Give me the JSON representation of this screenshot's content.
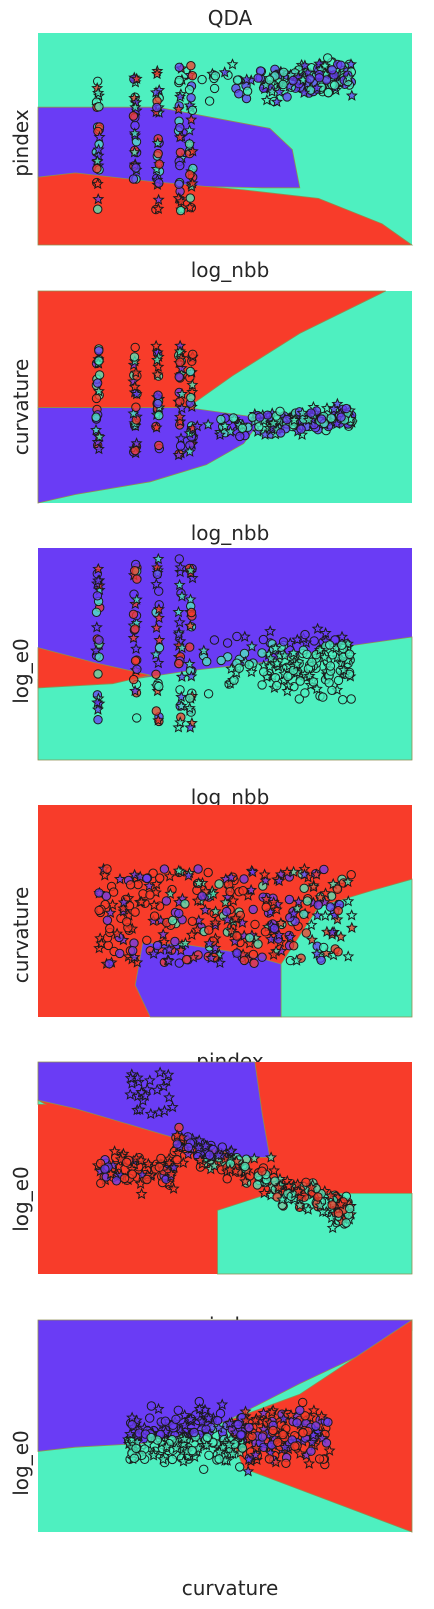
{
  "figure": {
    "title": "QDA"
  },
  "colors": {
    "class_a": "#4ef0c0",
    "class_b": "#6a3cf5",
    "class_c": "#f83c2a",
    "boundary": "#8f8f50",
    "marker_edge": "#1a1a1a"
  },
  "chart_data": [
    {
      "type": "scatter",
      "title": "QDA",
      "xlabel": "log_nbb",
      "ylabel": "pindex",
      "grid": false,
      "ticks": false
    },
    {
      "type": "scatter",
      "title": "",
      "xlabel": "log_nbb",
      "ylabel": "curvature",
      "grid": false,
      "ticks": false
    },
    {
      "type": "scatter",
      "title": "",
      "xlabel": "log_nbb",
      "ylabel": "log_e0",
      "grid": false,
      "ticks": false
    },
    {
      "type": "scatter",
      "title": "",
      "xlabel": "pindex",
      "ylabel": "curvature",
      "grid": false,
      "ticks": false
    },
    {
      "type": "scatter",
      "title": "",
      "xlabel": "pindex",
      "ylabel": "log_e0",
      "grid": false,
      "ticks": false
    },
    {
      "type": "scatter",
      "title": "",
      "xlabel": "curvature",
      "ylabel": "log_e0",
      "grid": false,
      "ticks": false
    }
  ]
}
